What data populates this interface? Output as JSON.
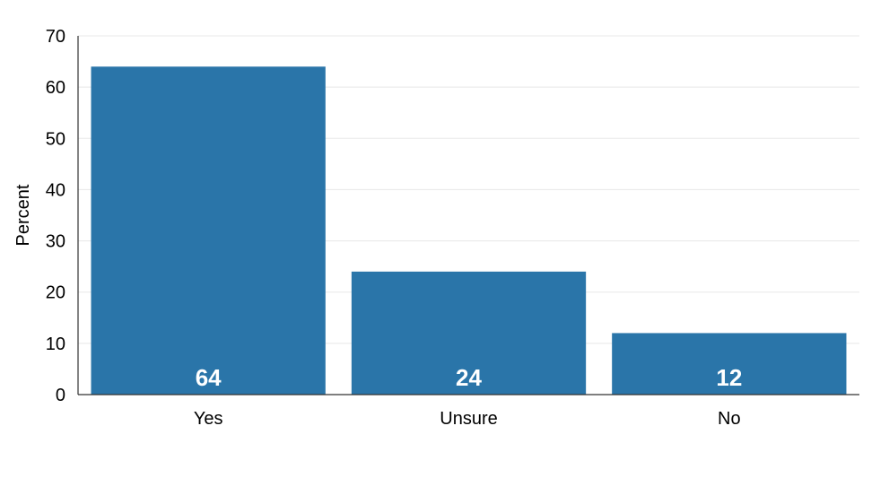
{
  "chart_data": {
    "type": "bar",
    "categories": [
      "Yes",
      "Unsure",
      "No"
    ],
    "values": [
      64,
      24,
      12
    ],
    "data_labels": [
      "64",
      "24",
      "12"
    ],
    "title": "",
    "xlabel": "",
    "ylabel": "Percent",
    "ylim": [
      0,
      70
    ],
    "yticks": [
      0,
      10,
      20,
      30,
      40,
      50,
      60,
      70
    ],
    "grid": true,
    "legend": "none",
    "colors": {
      "bar": "#2a75a9",
      "grid": "#e8e8e8",
      "axis": "#333333",
      "label": "#ffffff"
    }
  }
}
